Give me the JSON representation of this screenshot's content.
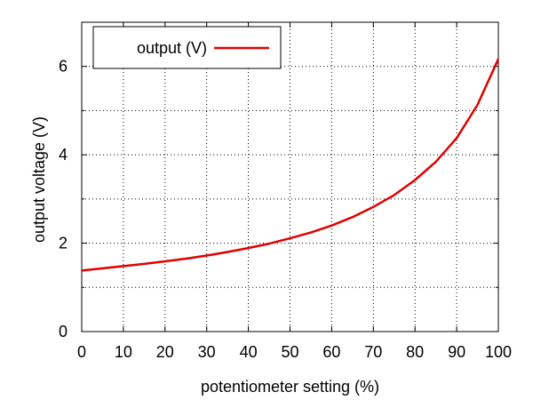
{
  "chart_data": {
    "type": "line",
    "xlabel": "potentiometer setting (%)",
    "ylabel": "output voltage (V)",
    "xlim": [
      0,
      100
    ],
    "ylim": [
      0,
      7
    ],
    "xticks": [
      0,
      10,
      20,
      30,
      40,
      50,
      60,
      70,
      80,
      90,
      100
    ],
    "yticks": [
      0,
      2,
      4,
      6
    ],
    "grid": true,
    "legend_position": "top-left",
    "series": [
      {
        "name": "output (V)",
        "color": "#e00000",
        "x": [
          0,
          5,
          10,
          15,
          20,
          25,
          30,
          35,
          40,
          45,
          50,
          55,
          60,
          65,
          70,
          75,
          80,
          85,
          90,
          95,
          100
        ],
        "y": [
          1.38,
          1.43,
          1.48,
          1.53,
          1.59,
          1.65,
          1.72,
          1.8,
          1.89,
          1.99,
          2.11,
          2.24,
          2.4,
          2.59,
          2.82,
          3.09,
          3.43,
          3.84,
          4.38,
          5.13,
          6.17
        ]
      }
    ]
  }
}
